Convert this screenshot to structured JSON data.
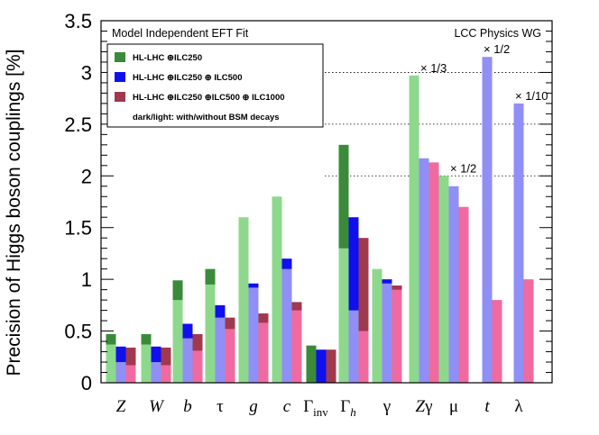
{
  "chart_data": {
    "type": "bar",
    "title": "Model Independent EFT Fit",
    "subtitle": "LCC Physics WG",
    "ylabel": "Precision of Higgs boson couplings [%]",
    "xlabel": "",
    "ylim": [
      0,
      3.5
    ],
    "yticks": [
      "0",
      "0.5",
      "1",
      "1.5",
      "2",
      "2.5",
      "3",
      "3.5"
    ],
    "grid": "horizontal dotted at 2, 2.5, 3, 3.5",
    "legend_position": "top-left",
    "legend": [
      {
        "label": "HL-LHC ⊕ILC250",
        "color": "#3a8a3a"
      },
      {
        "label": "HL-LHC ⊕ILC250 ⊕ ILC500",
        "color": "#1010ee"
      },
      {
        "label": "HL-LHC ⊕ILC250 ⊕ILC500 ⊕ ILC1000",
        "color": "#a0384e"
      }
    ],
    "legend_note": "dark/light: with/without BSM decays",
    "categories": [
      "Z",
      "W",
      "b",
      "τ",
      "g",
      "c",
      "Γinv",
      "Γh",
      "γ",
      "Zγ",
      "μ",
      "t",
      "λ"
    ],
    "series": [
      {
        "name": "HL-LHC ⊕ILC250",
        "dark_color": "#3a8a3a",
        "light_color": "#8ed88e",
        "dark_values": [
          0.47,
          0.47,
          0.99,
          1.1,
          null,
          null,
          0.36,
          2.3,
          null,
          null,
          null,
          null,
          null
        ],
        "light_values": [
          0.37,
          0.37,
          0.8,
          0.95,
          1.6,
          1.8,
          null,
          1.3,
          1.1,
          2.97,
          2.0,
          null,
          null
        ]
      },
      {
        "name": "HL-LHC ⊕ILC250 ⊕ ILC500",
        "dark_color": "#1010ee",
        "light_color": "#8f8ff6",
        "dark_values": [
          0.35,
          0.35,
          0.57,
          0.75,
          0.96,
          1.2,
          0.32,
          1.6,
          1.0,
          null,
          null,
          null,
          null
        ],
        "light_values": [
          0.2,
          0.2,
          0.43,
          0.63,
          0.92,
          1.1,
          null,
          0.7,
          0.96,
          2.17,
          1.9,
          3.15,
          2.7
        ]
      },
      {
        "name": "HL-LHC ⊕ILC250 ⊕ILC500 ⊕ ILC1000",
        "dark_color": "#a0384e",
        "light_color": "#f06aa0",
        "dark_values": [
          0.34,
          0.34,
          0.47,
          0.63,
          0.67,
          0.78,
          0.32,
          1.4,
          0.94,
          null,
          null,
          null,
          null
        ],
        "light_values": [
          0.17,
          0.17,
          0.31,
          0.52,
          0.58,
          0.7,
          null,
          0.5,
          0.9,
          2.13,
          1.7,
          0.8,
          1.0
        ]
      }
    ],
    "annotations": [
      {
        "text": "× 1/3",
        "category": "Zγ"
      },
      {
        "text": "× 1/2",
        "category": "μ"
      },
      {
        "text": "× 1/2",
        "category": "t"
      },
      {
        "text": "× 1/10",
        "category": "λ"
      }
    ]
  }
}
